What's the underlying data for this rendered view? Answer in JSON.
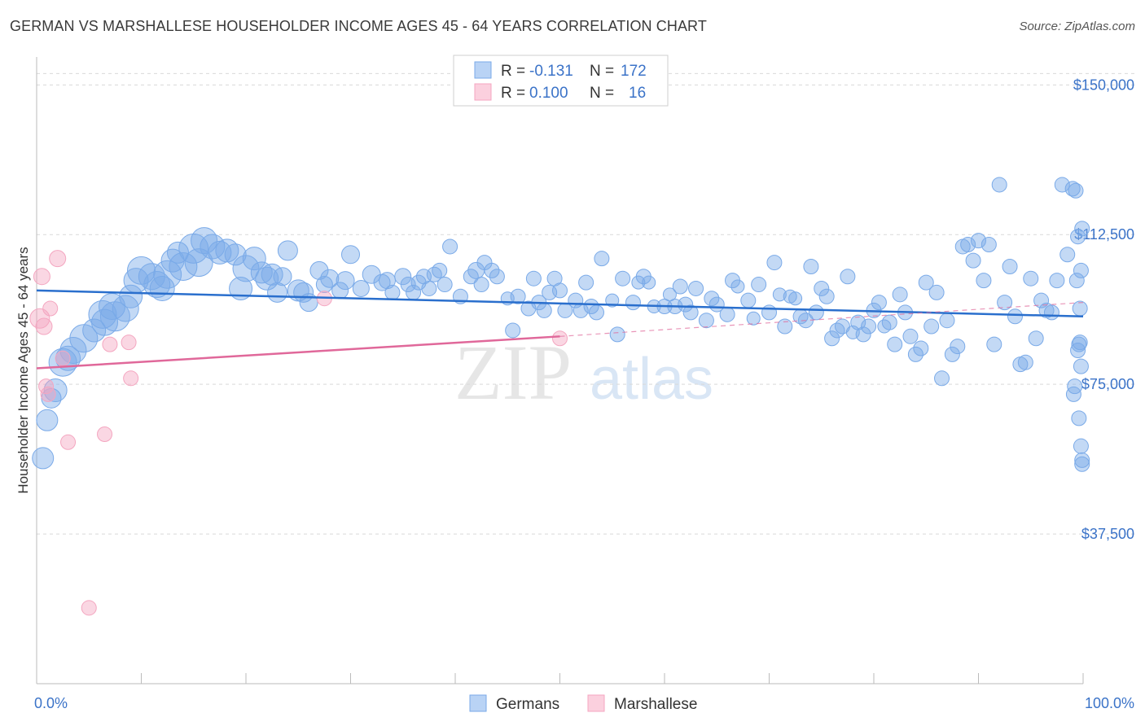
{
  "title": "GERMAN VS MARSHALLESE HOUSEHOLDER INCOME AGES 45 - 64 YEARS CORRELATION CHART",
  "source": "Source: ZipAtlas.com",
  "watermark": {
    "zip": "ZIP",
    "atlas": "atlas"
  },
  "colors": {
    "german": "#7aaae8",
    "german_line": "#2a6fcd",
    "marshallese": "#f4a6c0",
    "marshallese_line": "#e0689a",
    "axis_text": "#3b73c8",
    "grid": "#d9d9d9"
  },
  "legend": {
    "rows": [
      {
        "r_label": "R =",
        "r_value": "-0.131",
        "n_label": "N =",
        "n_value": "172"
      },
      {
        "r_label": "R =",
        "r_value": "0.100",
        "n_label": "N =",
        "n_value": "16"
      }
    ]
  },
  "bottom_legend": [
    "Germans",
    "Marshallese"
  ],
  "chart_data": {
    "type": "scatter",
    "xlabel": "",
    "ylabel": "Householder Income Ages 45 - 64 years",
    "xlim": [
      0,
      100
    ],
    "ylim": [
      0,
      157000
    ],
    "x_tick_labels": [
      "0.0%",
      "100.0%"
    ],
    "y_ticks": [
      37500,
      75000,
      112500,
      150000
    ],
    "y_tick_labels": [
      "$37,500",
      "$75,000",
      "$112,500",
      "$150,000"
    ],
    "grid": "horizontal dashed",
    "series": [
      {
        "name": "Germans",
        "trend": {
          "x": [
            0,
            100
          ],
          "y": [
            98500,
            92000
          ]
        },
        "points": [
          [
            0.6,
            56500,
            13
          ],
          [
            1.0,
            66000,
            13
          ],
          [
            1.4,
            71500,
            12
          ],
          [
            1.8,
            73500,
            14
          ],
          [
            2.5,
            80500,
            17
          ],
          [
            3.0,
            81500,
            15
          ],
          [
            3.5,
            83500,
            16
          ],
          [
            4.5,
            86500,
            17
          ],
          [
            5.5,
            88500,
            14
          ],
          [
            6.3,
            92500,
            17
          ],
          [
            6.5,
            90500,
            16
          ],
          [
            7.2,
            94500,
            16
          ],
          [
            7.5,
            92000,
            18
          ],
          [
            8.5,
            94000,
            16
          ],
          [
            9.0,
            97000,
            14
          ],
          [
            9.5,
            101000,
            15
          ],
          [
            10.0,
            103500,
            17
          ],
          [
            11.0,
            102000,
            16
          ],
          [
            11.5,
            100000,
            16
          ],
          [
            12.0,
            99000,
            15
          ],
          [
            12.5,
            102500,
            17
          ],
          [
            13.0,
            106000,
            14
          ],
          [
            13.5,
            108000,
            13
          ],
          [
            14.0,
            104500,
            17
          ],
          [
            15.0,
            109000,
            18
          ],
          [
            15.5,
            105500,
            17
          ],
          [
            16.0,
            111000,
            16
          ],
          [
            16.8,
            109500,
            15
          ],
          [
            17.5,
            108000,
            14
          ],
          [
            18.2,
            108500,
            14
          ],
          [
            19.0,
            107500,
            13
          ],
          [
            19.5,
            99000,
            14
          ],
          [
            20.0,
            104000,
            16
          ],
          [
            20.8,
            106500,
            14
          ],
          [
            21.5,
            103000,
            13
          ],
          [
            22.0,
            101500,
            14
          ],
          [
            22.5,
            102500,
            13
          ],
          [
            23.0,
            98000,
            12
          ],
          [
            23.5,
            102000,
            11
          ],
          [
            24.0,
            108500,
            12
          ],
          [
            25.0,
            98500,
            13
          ],
          [
            25.5,
            98000,
            12
          ],
          [
            26.0,
            95500,
            11
          ],
          [
            27.0,
            103500,
            11
          ],
          [
            27.5,
            100000,
            10
          ],
          [
            28.0,
            101500,
            11
          ],
          [
            29.0,
            98500,
            10
          ],
          [
            29.5,
            101000,
            11
          ],
          [
            30.0,
            107500,
            11
          ],
          [
            31.0,
            99000,
            10
          ],
          [
            32.0,
            102500,
            11
          ],
          [
            33.0,
            100500,
            10
          ],
          [
            33.5,
            101000,
            10
          ],
          [
            34.0,
            98000,
            9
          ],
          [
            35.0,
            102000,
            10
          ],
          [
            35.5,
            100000,
            9
          ],
          [
            36.0,
            98000,
            9
          ],
          [
            36.5,
            100500,
            9
          ],
          [
            37.0,
            102000,
            9
          ],
          [
            37.5,
            99000,
            9
          ],
          [
            38.0,
            102500,
            9
          ],
          [
            38.5,
            103500,
            9
          ],
          [
            39.0,
            100000,
            9
          ],
          [
            39.5,
            109500,
            9
          ],
          [
            40.5,
            97000,
            9
          ],
          [
            41.5,
            102000,
            9
          ],
          [
            42.0,
            103500,
            10
          ],
          [
            42.5,
            100000,
            9
          ],
          [
            42.8,
            105500,
            9
          ],
          [
            43.5,
            103500,
            9
          ],
          [
            44.0,
            102000,
            9
          ],
          [
            45.0,
            96500,
            8
          ],
          [
            45.5,
            88500,
            9
          ],
          [
            46.0,
            97000,
            9
          ],
          [
            47.0,
            94000,
            9
          ],
          [
            47.5,
            101500,
            9
          ],
          [
            48.0,
            95500,
            9
          ],
          [
            48.5,
            93500,
            9
          ],
          [
            49.0,
            98000,
            9
          ],
          [
            49.5,
            101500,
            9
          ],
          [
            50.0,
            98500,
            9
          ],
          [
            50.5,
            93500,
            9
          ],
          [
            51.5,
            96000,
            9
          ],
          [
            52.0,
            93500,
            9
          ],
          [
            52.5,
            100500,
            9
          ],
          [
            53.0,
            94500,
            9
          ],
          [
            53.5,
            93000,
            9
          ],
          [
            54.0,
            106500,
            9
          ],
          [
            55.0,
            96000,
            8
          ],
          [
            55.5,
            87500,
            9
          ],
          [
            56.0,
            101500,
            9
          ],
          [
            57.0,
            95500,
            9
          ],
          [
            57.5,
            100500,
            8
          ],
          [
            58.0,
            102000,
            9
          ],
          [
            58.5,
            100500,
            8
          ],
          [
            59.0,
            94500,
            8
          ],
          [
            60.0,
            94500,
            9
          ],
          [
            60.5,
            97500,
            8
          ],
          [
            61.0,
            94500,
            9
          ],
          [
            61.5,
            99500,
            9
          ],
          [
            62.0,
            95000,
            9
          ],
          [
            62.5,
            93000,
            9
          ],
          [
            63.0,
            99000,
            9
          ],
          [
            64.0,
            91000,
            9
          ],
          [
            64.5,
            96500,
            9
          ],
          [
            65.0,
            95000,
            9
          ],
          [
            66.0,
            92500,
            9
          ],
          [
            66.5,
            101000,
            9
          ],
          [
            67.0,
            99500,
            8
          ],
          [
            68.0,
            96000,
            9
          ],
          [
            68.5,
            91500,
            8
          ],
          [
            69.0,
            100000,
            9
          ],
          [
            70.0,
            93000,
            9
          ],
          [
            70.5,
            105500,
            9
          ],
          [
            71.0,
            97500,
            8
          ],
          [
            71.5,
            89500,
            9
          ],
          [
            72.0,
            97000,
            8
          ],
          [
            72.5,
            96500,
            8
          ],
          [
            73.0,
            92000,
            9
          ],
          [
            73.5,
            91000,
            9
          ],
          [
            74.0,
            104500,
            9
          ],
          [
            74.5,
            93000,
            9
          ],
          [
            75.0,
            99000,
            9
          ],
          [
            75.5,
            97000,
            9
          ],
          [
            76.0,
            86500,
            9
          ],
          [
            76.5,
            88500,
            9
          ],
          [
            77.0,
            89500,
            9
          ],
          [
            77.5,
            102000,
            9
          ],
          [
            78.0,
            88000,
            8
          ],
          [
            78.5,
            90500,
            9
          ],
          [
            79.0,
            87500,
            9
          ],
          [
            79.5,
            89500,
            9
          ],
          [
            80.0,
            93500,
            9
          ],
          [
            80.5,
            95500,
            9
          ],
          [
            81.0,
            89500,
            8
          ],
          [
            81.5,
            90500,
            9
          ],
          [
            82.0,
            85000,
            9
          ],
          [
            82.5,
            97500,
            9
          ],
          [
            83.0,
            93000,
            9
          ],
          [
            83.5,
            87000,
            9
          ],
          [
            84.0,
            82500,
            9
          ],
          [
            84.5,
            84000,
            9
          ],
          [
            85.0,
            100500,
            9
          ],
          [
            85.5,
            89500,
            9
          ],
          [
            86.0,
            98000,
            9
          ],
          [
            86.5,
            76500,
            9
          ],
          [
            87.0,
            91000,
            9
          ],
          [
            87.5,
            82500,
            9
          ],
          [
            88.0,
            84500,
            9
          ],
          [
            88.5,
            109500,
            9
          ],
          [
            89.0,
            110000,
            9
          ],
          [
            89.5,
            106000,
            9
          ],
          [
            90.0,
            111000,
            9
          ],
          [
            90.5,
            101000,
            9
          ],
          [
            91.0,
            110000,
            9
          ],
          [
            91.5,
            85000,
            9
          ],
          [
            92.0,
            125000,
            9
          ],
          [
            92.5,
            95500,
            9
          ],
          [
            93.0,
            104500,
            9
          ],
          [
            93.5,
            92000,
            9
          ],
          [
            94.0,
            80000,
            9
          ],
          [
            94.5,
            80500,
            9
          ],
          [
            95.0,
            101500,
            9
          ],
          [
            95.5,
            86500,
            9
          ],
          [
            96.0,
            96000,
            9
          ],
          [
            96.5,
            93500,
            9
          ],
          [
            97.0,
            93000,
            9
          ],
          [
            97.5,
            101000,
            9
          ],
          [
            98.0,
            125000,
            9
          ],
          [
            98.5,
            107500,
            9
          ],
          [
            99.0,
            124000,
            9
          ],
          [
            99.3,
            123500,
            9
          ],
          [
            99.6,
            85000,
            9
          ],
          [
            99.8,
            79500,
            9
          ],
          [
            99.2,
            74500,
            9
          ],
          [
            99.5,
            83500,
            9
          ],
          [
            99.7,
            85500,
            9
          ],
          [
            99.9,
            114000,
            9
          ],
          [
            99.4,
            101000,
            9
          ],
          [
            99.1,
            72500,
            9
          ],
          [
            99.6,
            66500,
            9
          ],
          [
            99.8,
            59500,
            9
          ],
          [
            99.9,
            55000,
            9
          ],
          [
            99.7,
            94000,
            9
          ],
          [
            99.8,
            103500,
            9
          ],
          [
            99.9,
            56000,
            9
          ],
          [
            99.5,
            112000,
            9
          ]
        ]
      },
      {
        "name": "Marshallese",
        "trend": {
          "x": [
            0,
            50
          ],
          "y": [
            79000,
            87000
          ]
        },
        "trend_ext": {
          "x": [
            50,
            100
          ],
          "y": [
            87000,
            95500
          ]
        },
        "points": [
          [
            0.3,
            91500,
            12
          ],
          [
            0.5,
            102000,
            10
          ],
          [
            0.7,
            89500,
            10
          ],
          [
            0.9,
            74500,
            9
          ],
          [
            1.1,
            72500,
            9
          ],
          [
            1.3,
            94000,
            9
          ],
          [
            2.0,
            106500,
            10
          ],
          [
            2.5,
            81500,
            9
          ],
          [
            3.0,
            60500,
            9
          ],
          [
            5.0,
            19000,
            9
          ],
          [
            6.5,
            62500,
            9
          ],
          [
            7.0,
            85000,
            9
          ],
          [
            8.8,
            85500,
            9
          ],
          [
            9.0,
            76500,
            9
          ],
          [
            27.5,
            96500,
            9
          ],
          [
            50.0,
            86500,
            9
          ]
        ]
      }
    ]
  }
}
